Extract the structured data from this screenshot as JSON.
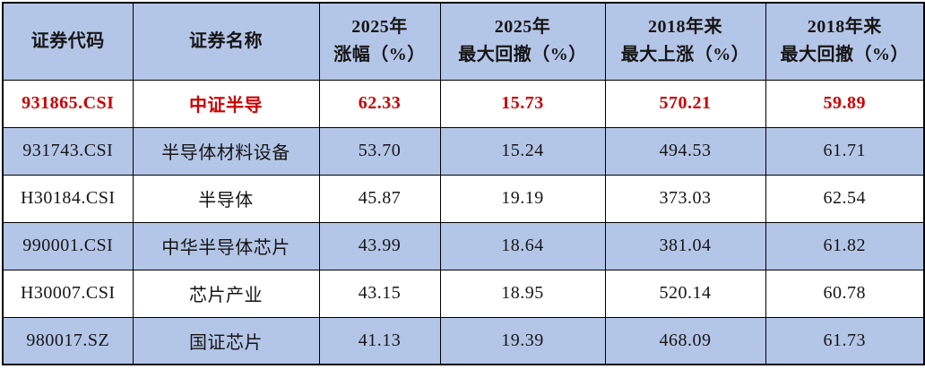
{
  "colors": {
    "header_bg": "#b4c6e7",
    "stripe_bg": "#b4c6e7",
    "plain_bg": "#ffffff",
    "border": "#000000",
    "text": "#151515",
    "highlight_text": "#cc0000"
  },
  "table": {
    "headers": [
      "证券代码",
      "证券名称",
      "2025年\n涨幅（%）",
      "2025年\n最大回撤（%）",
      "2018年来\n最大上涨（%）",
      "2018年来\n最大回撤（%）"
    ],
    "rows": [
      {
        "cells": [
          "931865.CSI",
          "中证半导",
          "62.33",
          "15.73",
          "570.21",
          "59.89"
        ],
        "highlight": true
      },
      {
        "cells": [
          "931743.CSI",
          "半导体材料设备",
          "53.70",
          "15.24",
          "494.53",
          "61.71"
        ],
        "highlight": false
      },
      {
        "cells": [
          "H30184.CSI",
          "半导体",
          "45.87",
          "19.19",
          "373.03",
          "62.54"
        ],
        "highlight": false
      },
      {
        "cells": [
          "990001.CSI",
          "中华半导体芯片",
          "43.99",
          "18.64",
          "381.04",
          "61.82"
        ],
        "highlight": false
      },
      {
        "cells": [
          "H30007.CSI",
          "芯片产业",
          "43.15",
          "18.95",
          "520.14",
          "60.78"
        ],
        "highlight": false
      },
      {
        "cells": [
          "980017.SZ",
          "国证芯片",
          "41.13",
          "19.39",
          "468.09",
          "61.73"
        ],
        "highlight": false
      }
    ]
  },
  "chart_data": {
    "type": "table",
    "title": "",
    "columns": [
      "证券代码",
      "证券名称",
      "2025年涨幅（%）",
      "2025年最大回撤（%）",
      "2018年来最大上涨（%）",
      "2018年来最大回撤（%）"
    ],
    "rows": [
      [
        "931865.CSI",
        "中证半导",
        62.33,
        15.73,
        570.21,
        59.89
      ],
      [
        "931743.CSI",
        "半导体材料设备",
        53.7,
        15.24,
        494.53,
        61.71
      ],
      [
        "H30184.CSI",
        "半导体",
        45.87,
        19.19,
        373.03,
        62.54
      ],
      [
        "990001.CSI",
        "中华半导体芯片",
        43.99,
        18.64,
        381.04,
        61.82
      ],
      [
        "H30007.CSI",
        "芯片产业",
        43.15,
        18.95,
        520.14,
        60.78
      ],
      [
        "980017.SZ",
        "国证芯片",
        41.13,
        19.39,
        468.09,
        61.73
      ]
    ],
    "highlighted_row": "931865.CSI",
    "layout": {
      "zebra_striping": true,
      "header_background": "#b4c6e7",
      "grid": true
    }
  }
}
